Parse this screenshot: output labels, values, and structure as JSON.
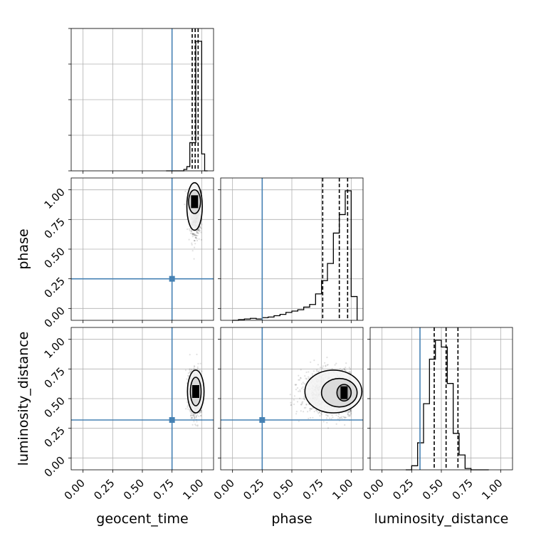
{
  "chart_data": {
    "type": "corner",
    "parameters": [
      "geocent_time",
      "phase",
      "luminosity_distance"
    ],
    "axis_labels": {
      "geocent_time": "geocent_time",
      "phase": "phase",
      "luminosity_distance": "luminosity_distance"
    },
    "ticks": [
      0.0,
      0.25,
      0.5,
      0.75,
      1.0
    ],
    "tick_labels": [
      "0.00",
      "0.25",
      "0.50",
      "0.75",
      "1.00"
    ],
    "range": [
      -0.1,
      1.1
    ],
    "grid": true,
    "truth": {
      "geocent_time": 0.75,
      "phase": 0.25,
      "luminosity_distance": 0.32
    },
    "truth_color": "#4682b4",
    "hist_color": "#000000",
    "marginals": {
      "geocent_time": {
        "bin_edges": [
          0.7,
          0.725,
          0.75,
          0.775,
          0.8,
          0.825,
          0.85,
          0.875,
          0.9,
          0.925,
          0.95,
          0.975,
          1.0,
          1.025,
          1.05
        ],
        "counts": [
          0,
          0,
          0,
          0,
          0,
          0,
          0.01,
          0.03,
          0.2,
          0.2,
          0.92,
          0.92,
          0.12,
          0
        ],
        "quantile_lines": [
          0.92,
          0.945,
          0.97
        ]
      },
      "phase": {
        "bin_edges": [
          0.0,
          0.05,
          0.1,
          0.15,
          0.2,
          0.25,
          0.3,
          0.35,
          0.4,
          0.45,
          0.5,
          0.55,
          0.6,
          0.65,
          0.7,
          0.75,
          0.8,
          0.85,
          0.9,
          0.95,
          1.0,
          1.05
        ],
        "counts": [
          0.0,
          0.005,
          0.01,
          0.015,
          0.01,
          0.02,
          0.025,
          0.035,
          0.045,
          0.06,
          0.07,
          0.08,
          0.1,
          0.12,
          0.2,
          0.3,
          0.43,
          0.66,
          0.8,
          0.98,
          0.18
        ],
        "quantile_lines": [
          0.76,
          0.9,
          0.97
        ]
      },
      "luminosity_distance": {
        "bin_edges": [
          0.2,
          0.25,
          0.3,
          0.35,
          0.4,
          0.45,
          0.5,
          0.55,
          0.6,
          0.65,
          0.7,
          0.75,
          0.8,
          0.85,
          0.9
        ],
        "counts": [
          0.0,
          0.03,
          0.2,
          0.49,
          0.82,
          0.96,
          0.91,
          0.64,
          0.27,
          0.11,
          0.01,
          0.0,
          0.0,
          0.0
        ],
        "quantile_lines": [
          0.44,
          0.54,
          0.64
        ]
      }
    },
    "joint": [
      {
        "x": "geocent_time",
        "y": "phase",
        "mean": [
          0.95,
          0.86
        ],
        "sd": [
          0.025,
          0.11
        ],
        "n": 1400,
        "contours": [
          {
            "cx": 0.94,
            "cy": 0.9,
            "rx": 0.05,
            "ry": 0.1
          },
          {
            "cx": 0.94,
            "cy": 0.86,
            "rx": 0.065,
            "ry": 0.2
          }
        ]
      },
      {
        "x": "geocent_time",
        "y": "luminosity_distance",
        "mean": [
          0.95,
          0.55
        ],
        "sd": [
          0.025,
          0.09
        ],
        "n": 1400,
        "contours": [
          {
            "cx": 0.95,
            "cy": 0.56,
            "rx": 0.045,
            "ry": 0.12
          },
          {
            "cx": 0.95,
            "cy": 0.56,
            "rx": 0.07,
            "ry": 0.18
          }
        ]
      },
      {
        "x": "phase",
        "y": "luminosity_distance",
        "mean": [
          0.85,
          0.55
        ],
        "sd": [
          0.13,
          0.09
        ],
        "n": 1600,
        "contours": [
          {
            "cx": 0.94,
            "cy": 0.55,
            "rx": 0.06,
            "ry": 0.07
          },
          {
            "cx": 0.9,
            "cy": 0.55,
            "rx": 0.15,
            "ry": 0.12
          },
          {
            "cx": 0.85,
            "cy": 0.56,
            "rx": 0.24,
            "ry": 0.18
          }
        ]
      }
    ]
  }
}
